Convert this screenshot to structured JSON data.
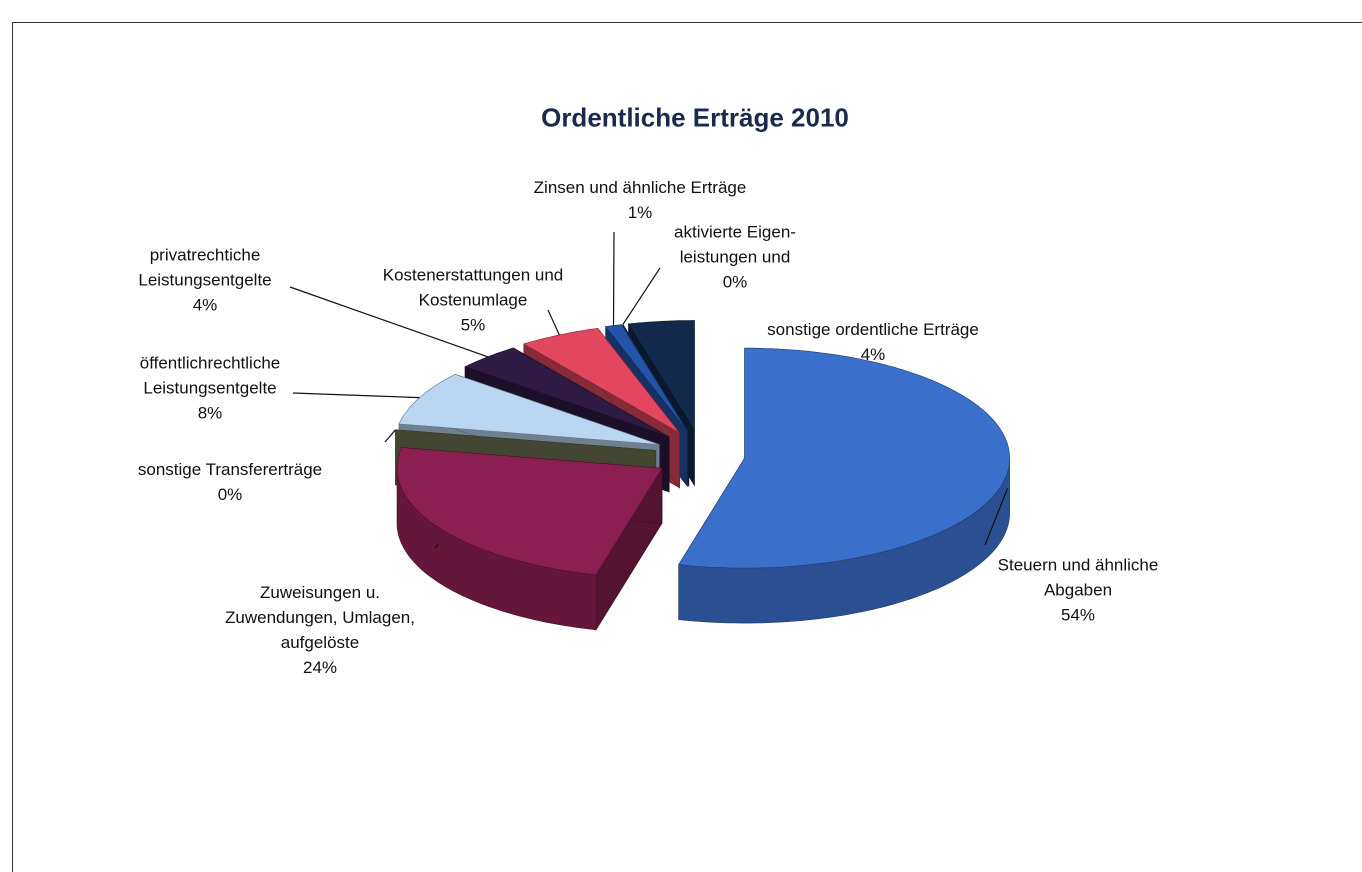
{
  "chart_data": {
    "type": "pie",
    "title": "Ordentliche Erträge 2010",
    "categories": [
      "Steuern und ähnliche\nAbgaben",
      "Zuweisungen u.\nZuwendungen, Umlagen,\naufgelöste",
      "sonstige Transfererträge",
      "öffentlichrechtliche\nLeistungsentgelte",
      "privatrechtiche\nLeistungsentgelte",
      "Kostenerstattungen und\nKostenumlage",
      "Zinsen und ähnliche Erträge",
      "aktivierte Eigen-\nleistungen und",
      "sonstige ordentliche Erträge"
    ],
    "values": [
      54,
      24,
      0,
      8,
      4,
      5,
      1,
      0,
      4
    ],
    "value_labels": [
      "54%",
      "24%",
      "0%",
      "8%",
      "4%",
      "5%",
      "1%",
      "0%",
      "4%"
    ],
    "colors": [
      "#3b6fcc",
      "#8c1f52",
      "#6f7550",
      "#b9d6f2",
      "#2e1a42",
      "#e2475f",
      "#2454a8",
      "#1a3262",
      "#13294c"
    ]
  }
}
